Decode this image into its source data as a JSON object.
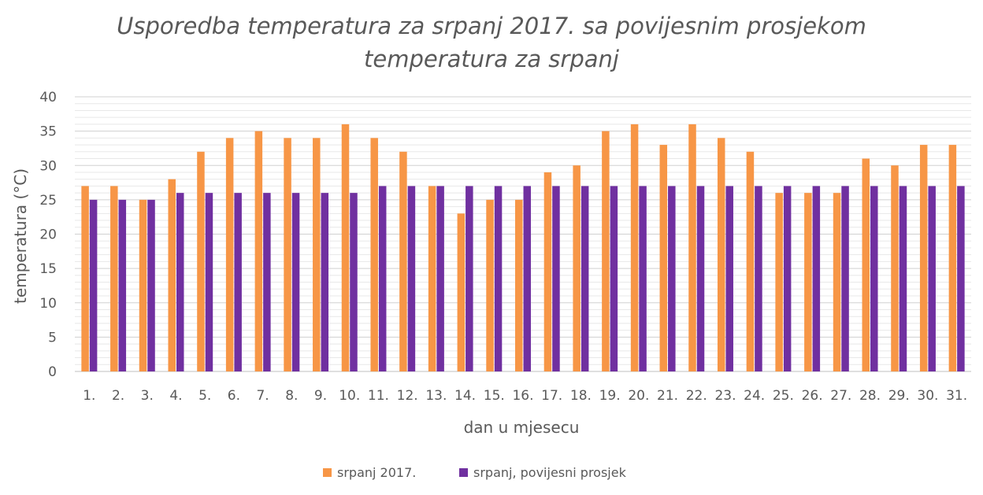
{
  "chart_data": {
    "type": "bar",
    "title": "Usporedba temperatura za srpanj 2017. sa povijesnim prosjekom temperatura za srpanj",
    "title_lines": [
      "Usporedba temperatura za srpanj 2017. sa povijesnim prosjekom",
      "temperatura za srpanj"
    ],
    "xlabel": "dan u mjesecu",
    "ylabel": "temperatura (°C)",
    "ylim": [
      0,
      40
    ],
    "yticks": [
      0,
      5,
      10,
      15,
      20,
      25,
      30,
      35,
      40
    ],
    "grid": true,
    "legend_position": "bottom",
    "categories": [
      "1.",
      "2.",
      "3.",
      "4.",
      "5.",
      "6.",
      "7.",
      "8.",
      "9.",
      "10.",
      "11.",
      "12.",
      "13.",
      "14.",
      "15.",
      "16.",
      "17.",
      "18.",
      "19.",
      "20.",
      "21.",
      "22.",
      "23.",
      "24.",
      "25.",
      "26.",
      "27.",
      "28.",
      "29.",
      "30.",
      "31."
    ],
    "series": [
      {
        "name": "srpanj 2017.",
        "color": "#F79646",
        "values": [
          27,
          27,
          25,
          28,
          32,
          34,
          35,
          34,
          34,
          36,
          34,
          32,
          27,
          23,
          25,
          25,
          29,
          30,
          35,
          36,
          33,
          36,
          34,
          32,
          26,
          26,
          26,
          31,
          30,
          33,
          33
        ]
      },
      {
        "name": "srpanj, povijesni prosjek",
        "color": "#7030A0",
        "values": [
          25,
          25,
          25,
          26,
          26,
          26,
          26,
          26,
          26,
          26,
          27,
          27,
          27,
          27,
          27,
          27,
          27,
          27,
          27,
          27,
          27,
          27,
          27,
          27,
          27,
          27,
          27,
          27,
          27,
          27,
          27
        ]
      }
    ],
    "gridline_color": "#D9D9D9",
    "text_color": "#595959"
  }
}
